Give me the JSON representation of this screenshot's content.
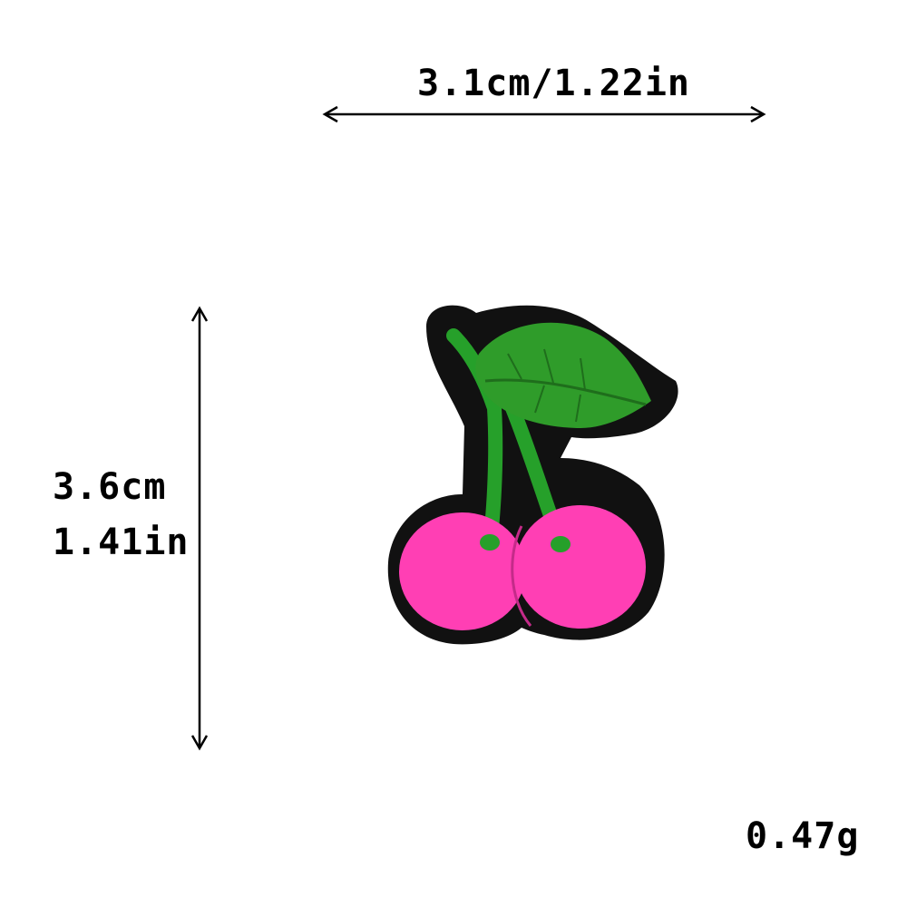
{
  "dimensions": {
    "width_label": "3.1cm/1.22in",
    "height_cm": "3.6cm",
    "height_in": "1.41in"
  },
  "weight_label": "0.47g",
  "colors": {
    "background": "#ffffff",
    "patch_border": "#111111",
    "leaf_green": "#2f9c2a",
    "cherry_pink": "#ff3fb4",
    "arrow": "#000000"
  },
  "icons": {
    "patch": "cherry-patch-icon",
    "horizontal_arrow": "double-arrow-horizontal-icon",
    "vertical_arrow": "double-arrow-vertical-icon"
  }
}
